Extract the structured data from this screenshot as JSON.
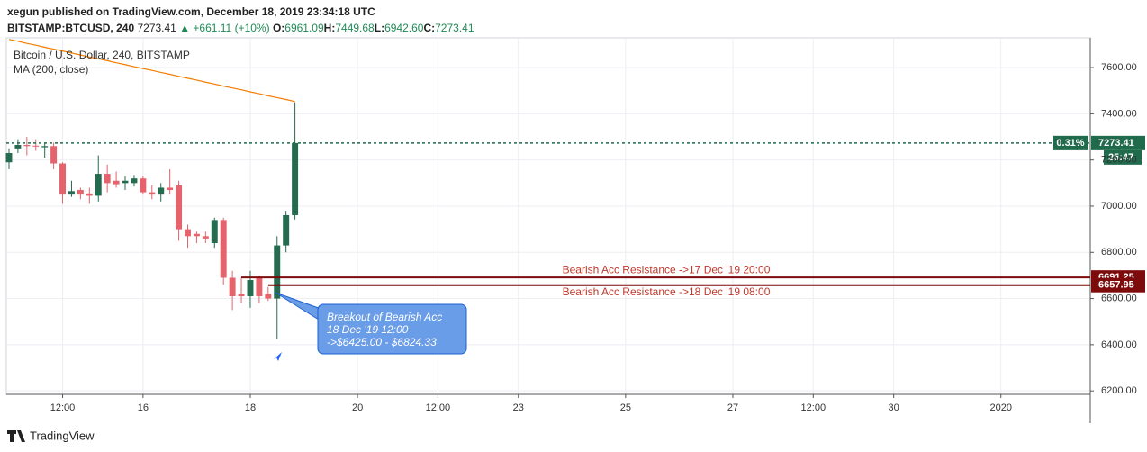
{
  "header": {
    "publisher": "xegun published on TradingView.com, December 18, 2019 23:34:18 UTC",
    "symbol": "BITSTAMP:BTCUSD, 240",
    "last": "7273.41",
    "change": "▲ +661.11 (+10%)",
    "ohlc": [
      {
        "label": "O:",
        "value": "6961.09"
      },
      {
        "label": "H:",
        "value": "7449.68"
      },
      {
        "label": "L:",
        "value": "6942.60"
      },
      {
        "label": "C:",
        "value": "7273.41"
      }
    ]
  },
  "chart_data": {
    "type": "candlestick",
    "title": "Bitcoin / U.S. Dollar, 240, BITSTAMP",
    "x": [
      0,
      1,
      2,
      3,
      4,
      5,
      6,
      7,
      8,
      9,
      10,
      11,
      12,
      13,
      14,
      15,
      16,
      17,
      18,
      19,
      20,
      21,
      22,
      23,
      24,
      25,
      26,
      27,
      28,
      29,
      30,
      31,
      32
    ],
    "open": [
      7190,
      7250,
      7265,
      7262,
      7255,
      7260,
      7185,
      7050,
      7070,
      7055,
      7045,
      7140,
      7110,
      7100,
      7100,
      7120,
      7060,
      7050,
      7080,
      7090,
      6900,
      6880,
      6870,
      6840,
      6940,
      6690,
      6620,
      6610,
      6690,
      6620,
      6600,
      6830,
      6961.09
    ],
    "high": [
      7250,
      7290,
      7300,
      7290,
      7275,
      7275,
      7190,
      7110,
      7080,
      7080,
      7220,
      7180,
      7150,
      7130,
      7135,
      7130,
      7090,
      7100,
      7160,
      7110,
      6920,
      6890,
      6890,
      6950,
      6950,
      6720,
      6690,
      6720,
      6700,
      6650,
      6870,
      6980,
      7449.68
    ],
    "low": [
      7160,
      7230,
      7220,
      7240,
      7210,
      7160,
      7010,
      7040,
      7030,
      7010,
      7020,
      7060,
      7080,
      7070,
      7085,
      7050,
      7030,
      7020,
      7050,
      6850,
      6820,
      6840,
      6840,
      6820,
      6660,
      6550,
      6580,
      6560,
      6580,
      6590,
      6425,
      6800,
      6942.6
    ],
    "close": [
      7230,
      7265,
      7260,
      7258,
      7260,
      7185,
      7050,
      7065,
      7050,
      7045,
      7140,
      7100,
      7095,
      7110,
      7120,
      7060,
      7050,
      7080,
      7070,
      6900,
      6870,
      6870,
      6860,
      6940,
      6690,
      6610,
      6610,
      6680,
      6610,
      6600,
      6830,
      6961.09,
      7273.41
    ],
    "up_color": "#246b4f",
    "down_color": "#e5636c",
    "series": [
      {
        "name": "MA (200, close)",
        "color": "#f57c00",
        "values": [
          7722,
          7714,
          7705,
          7697,
          7688,
          7680,
          7672,
          7663,
          7655,
          7646,
          7638,
          7630,
          7621,
          7613,
          7604,
          7596,
          7588,
          7579,
          7571,
          7562,
          7554,
          7546,
          7537,
          7529,
          7520,
          7512,
          7504,
          7495,
          7487,
          7478,
          7470,
          7462,
          7453
        ]
      }
    ],
    "xlim": [
      -0.3,
      121
    ],
    "xticks": [
      {
        "value": 6,
        "label": "12:00"
      },
      {
        "value": 15,
        "label": "16"
      },
      {
        "value": 27,
        "label": "18"
      },
      {
        "value": 39,
        "label": "20"
      },
      {
        "value": 48,
        "label": "12:00"
      },
      {
        "value": 57,
        "label": "23"
      },
      {
        "value": 69,
        "label": "25"
      },
      {
        "value": 81,
        "label": "27"
      },
      {
        "value": 90,
        "label": "12:00"
      },
      {
        "value": 99,
        "label": "30"
      },
      {
        "value": 111,
        "label": "2020"
      }
    ],
    "ylim": [
      6185,
      7729
    ],
    "yticks": [
      {
        "value": 6200,
        "label": "6200.00"
      },
      {
        "value": 6400,
        "label": "6400.00"
      },
      {
        "value": 6600,
        "label": "6600.00"
      },
      {
        "value": 6800,
        "label": "6800.00"
      },
      {
        "value": 7000,
        "label": "7000.00"
      },
      {
        "value": 7200,
        "label": "7200.00"
      },
      {
        "value": 7400,
        "label": "7400.00"
      },
      {
        "value": 7600,
        "label": "7600.00"
      }
    ],
    "grid": true,
    "last_price": {
      "value": 7273.41,
      "change": "0.31%",
      "countdown": "25:47",
      "color": "#1f6b4c"
    },
    "levels": [
      {
        "value": 6691.25,
        "start": 26,
        "text": "Bearish Acc Resistance ->17 Dec '19 20:00",
        "color": "#7d0b0b"
      },
      {
        "value": 6657.95,
        "start": 29,
        "text": "Bearish Acc Resistance ->18 Dec '19 08:00",
        "color": "#7d0b0b"
      }
    ],
    "annotation": [
      "Breakout of Bearish Acc",
      "18 Dec '19 12:00",
      "->$6425.00 - $6824.33"
    ]
  },
  "footer": {
    "brand": "TradingView"
  }
}
